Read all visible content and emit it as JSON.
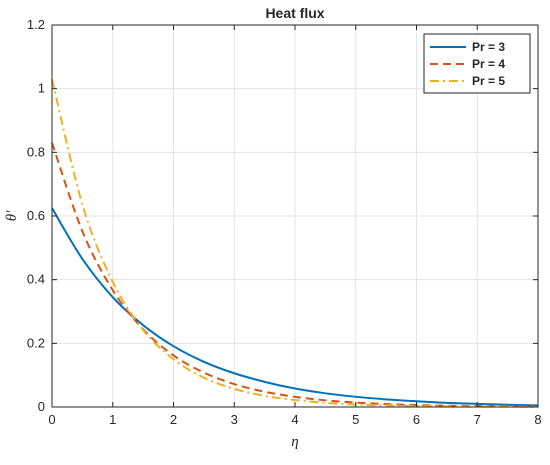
{
  "chart_data": {
    "type": "line",
    "title": "Heat flux",
    "xlabel": "η",
    "ylabel": "θ'",
    "xlim": [
      0,
      8
    ],
    "ylim": [
      0,
      1.2
    ],
    "xticks": [
      "0",
      "1",
      "2",
      "3",
      "4",
      "5",
      "6",
      "7",
      "8"
    ],
    "yticks": [
      "0",
      "0.2",
      "0.4",
      "0.6",
      "0.8",
      "1",
      "1.2"
    ],
    "grid": true,
    "legend_position": "top-right",
    "x": [
      0,
      0.5,
      1,
      1.5,
      2,
      2.5,
      3,
      3.5,
      4,
      4.5,
      5,
      5.5,
      6,
      6.5,
      7,
      7.5,
      8
    ],
    "series": [
      {
        "name": "Pr = 3",
        "color": "#0072BD",
        "dash": "solid",
        "values": [
          0.625,
          0.465,
          0.345,
          0.257,
          0.191,
          0.142,
          0.106,
          0.079,
          0.058,
          0.043,
          0.032,
          0.024,
          0.018,
          0.013,
          0.01,
          0.007,
          0.005
        ]
      },
      {
        "name": "Pr = 4",
        "color": "#D95319",
        "dash": "dashed",
        "values": [
          0.83,
          0.552,
          0.367,
          0.244,
          0.162,
          0.108,
          0.072,
          0.048,
          0.032,
          0.021,
          0.014,
          0.009,
          0.006,
          0.004,
          0.003,
          0.002,
          0.001
        ]
      },
      {
        "name": "Pr = 5",
        "color": "#EDB120",
        "dash": "dashdot",
        "values": [
          1.03,
          0.636,
          0.393,
          0.242,
          0.15,
          0.092,
          0.057,
          0.035,
          0.022,
          0.013,
          0.008,
          0.005,
          0.003,
          0.002,
          0.001,
          0.001,
          0.0
        ]
      }
    ]
  }
}
